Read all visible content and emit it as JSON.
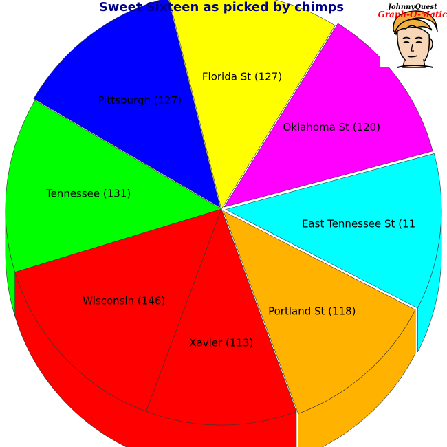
{
  "chart_data": {
    "type": "pie",
    "style": "3d-exploded",
    "title": "Sweet Sixteen as picked by chimps",
    "slices": [
      {
        "label": "Florida St (127)",
        "value": 127,
        "color": "#ffff00"
      },
      {
        "label": "Oklahoma St (120)",
        "value": 120,
        "color": "#ff00ff"
      },
      {
        "label": "East Tennessee St (11",
        "value": 117,
        "color": "#00ffff"
      },
      {
        "label": "Portland St (118)",
        "value": 118,
        "color": "#ffb300"
      },
      {
        "label": "Xavier (113)",
        "value": 113,
        "color": "#ff0000"
      },
      {
        "label": "Wisconsin (146)",
        "value": 146,
        "color": "#ff0000"
      },
      {
        "label": "Tennessee (131)",
        "value": 131,
        "color": "#00ff00"
      },
      {
        "label": "Pittsburgh (127)",
        "value": 127,
        "color": "#0000ff"
      }
    ]
  },
  "logo": {
    "line1": "JohnnyQuest",
    "line2": "Graph-O-Matic",
    "line1_color": "#000000",
    "line2_color": "#ff0000",
    "image": "cartoon-boy-face"
  }
}
